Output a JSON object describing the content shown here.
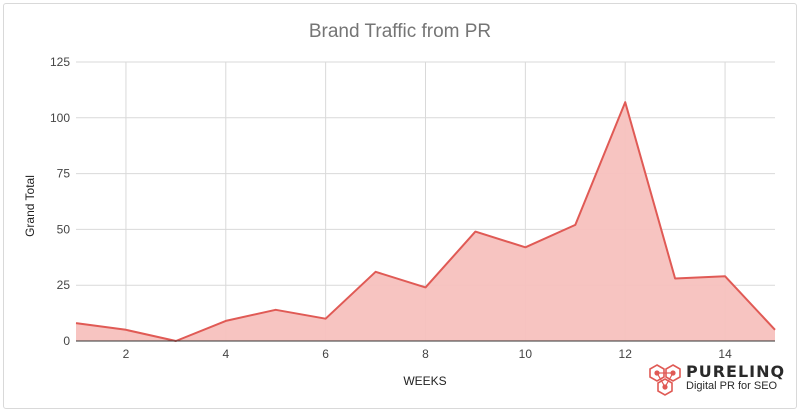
{
  "chart_data": {
    "type": "area",
    "title": "Brand Traffic from PR",
    "xlabel": "WEEKS",
    "ylabel": "Grand Total",
    "x": [
      1,
      2,
      3,
      4,
      5,
      6,
      7,
      8,
      9,
      10,
      11,
      12,
      13,
      14,
      15
    ],
    "values": [
      8,
      5,
      0,
      9,
      14,
      10,
      31,
      24,
      49,
      42,
      52,
      107,
      28,
      29,
      5
    ],
    "xlim": [
      1,
      15
    ],
    "ylim": [
      0,
      125
    ],
    "x_ticks": [
      2,
      4,
      6,
      8,
      10,
      12,
      14
    ],
    "y_ticks": [
      0,
      25,
      50,
      75,
      100,
      125
    ],
    "grid": true,
    "colors": {
      "line": "#e05a55",
      "fill": "#f7c1be",
      "grid": "#d9d9d9"
    }
  },
  "brand": {
    "name": "PURELINQ",
    "tagline": "Digital PR for SEO",
    "icon": "hexagon-network-logo",
    "color": "#e05a55"
  }
}
